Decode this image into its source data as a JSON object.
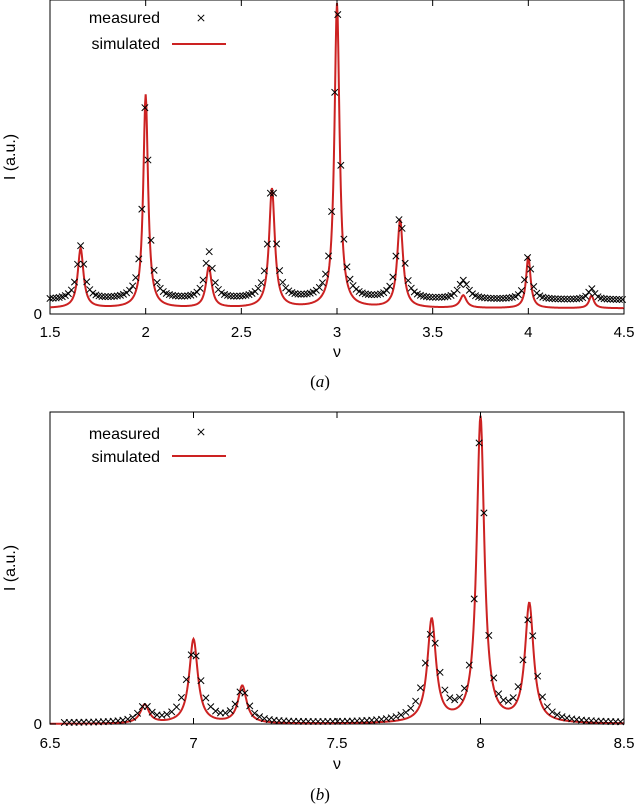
{
  "chart_data": [
    {
      "type": "line",
      "panel_label": "a",
      "xlabel": "ν",
      "ylabel": "I (a.u.)",
      "xlim": [
        1.5,
        4.5
      ],
      "ylim": [
        0,
        1.0
      ],
      "x_ticks": [
        "1.5",
        "2",
        "2.5",
        "3",
        "3.5",
        "4",
        "4.5"
      ],
      "x_tick_values": [
        1.5,
        2,
        2.5,
        3,
        3.5,
        4,
        4.5
      ],
      "y_ticks": [
        "0"
      ],
      "y_tick_values": [
        0
      ],
      "legend": {
        "position": "top-left",
        "entries": [
          "measured",
          "simulated"
        ]
      },
      "series": [
        {
          "name": "simulated",
          "kind": "line",
          "color": "#cc2222",
          "baseline": 0.018,
          "peaks": [
            {
              "x": 1.66,
              "height": 0.19,
              "width": 0.018
            },
            {
              "x": 2.0,
              "height": 0.68,
              "width": 0.015
            },
            {
              "x": 2.33,
              "height": 0.13,
              "width": 0.018
            },
            {
              "x": 2.66,
              "height": 0.38,
              "width": 0.018
            },
            {
              "x": 3.0,
              "height": 0.97,
              "width": 0.016
            },
            {
              "x": 3.33,
              "height": 0.28,
              "width": 0.018
            },
            {
              "x": 3.66,
              "height": 0.04,
              "width": 0.02
            },
            {
              "x": 4.0,
              "height": 0.165,
              "width": 0.014
            },
            {
              "x": 4.33,
              "height": 0.04,
              "width": 0.015
            }
          ]
        },
        {
          "name": "measured",
          "kind": "points",
          "marker": "×",
          "color": "#000000",
          "x_range": [
            1.5,
            4.5
          ],
          "step": 0.016,
          "baseline": 0.045,
          "peaks": [
            {
              "x": 1.66,
              "height": 0.17,
              "width": 0.022
            },
            {
              "x": 2.0,
              "height": 0.64,
              "width": 0.018
            },
            {
              "x": 2.33,
              "height": 0.15,
              "width": 0.024
            },
            {
              "x": 2.66,
              "height": 0.38,
              "width": 0.022
            },
            {
              "x": 3.0,
              "height": 0.95,
              "width": 0.018
            },
            {
              "x": 3.33,
              "height": 0.27,
              "width": 0.022
            },
            {
              "x": 3.66,
              "height": 0.06,
              "width": 0.03
            },
            {
              "x": 4.0,
              "height": 0.14,
              "width": 0.018
            },
            {
              "x": 4.33,
              "height": 0.035,
              "width": 0.02
            }
          ]
        }
      ]
    },
    {
      "type": "line",
      "panel_label": "b",
      "xlabel": "ν",
      "ylabel": "I (a.u.)",
      "xlim": [
        6.5,
        8.5
      ],
      "ylim": [
        0,
        1.0
      ],
      "x_ticks": [
        "6.5",
        "7",
        "7.5",
        "8",
        "8.5"
      ],
      "x_tick_values": [
        6.5,
        7,
        7.5,
        8,
        8.5
      ],
      "y_ticks": [
        "0"
      ],
      "y_tick_values": [
        0
      ],
      "legend": {
        "position": "top-left",
        "entries": [
          "measured",
          "simulated"
        ]
      },
      "series": [
        {
          "name": "simulated",
          "kind": "line",
          "color": "#cc2222",
          "baseline": 0.0,
          "peaks": [
            {
              "x": 6.83,
              "height": 0.06,
              "width": 0.018
            },
            {
              "x": 7.0,
              "height": 0.27,
              "width": 0.018
            },
            {
              "x": 7.17,
              "height": 0.12,
              "width": 0.018
            },
            {
              "x": 7.83,
              "height": 0.33,
              "width": 0.018
            },
            {
              "x": 8.0,
              "height": 0.98,
              "width": 0.016
            },
            {
              "x": 8.17,
              "height": 0.38,
              "width": 0.018
            }
          ]
        },
        {
          "name": "measured",
          "kind": "points",
          "marker": "×",
          "color": "#000000",
          "x_range": [
            6.55,
            8.5
          ],
          "step": 0.017,
          "baseline": 0.003,
          "peaks": [
            {
              "x": 6.83,
              "height": 0.05,
              "width": 0.025
            },
            {
              "x": 7.0,
              "height": 0.23,
              "width": 0.03
            },
            {
              "x": 7.17,
              "height": 0.1,
              "width": 0.025
            },
            {
              "x": 7.83,
              "height": 0.28,
              "width": 0.03
            },
            {
              "x": 8.0,
              "height": 0.95,
              "width": 0.018
            },
            {
              "x": 8.17,
              "height": 0.33,
              "width": 0.025
            }
          ]
        }
      ]
    }
  ]
}
